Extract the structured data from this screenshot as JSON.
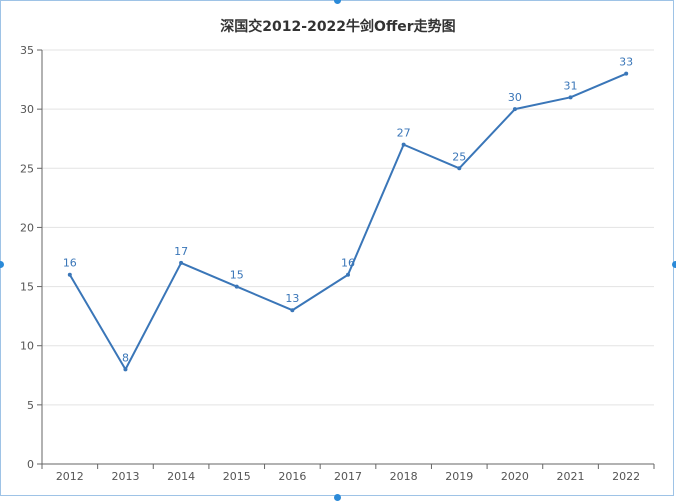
{
  "chart_data": {
    "type": "line",
    "title": "深国交2012-2022牛剑Offer走势图",
    "xlabel": "",
    "ylabel": "",
    "categories": [
      "2012",
      "2013",
      "2014",
      "2015",
      "2016",
      "2017",
      "2018",
      "2019",
      "2020",
      "2021",
      "2022"
    ],
    "series": [
      {
        "values": [
          16,
          8,
          17,
          15,
          13,
          16,
          27,
          25,
          30,
          31,
          33
        ],
        "color": "#3a76b8"
      }
    ],
    "ylim": [
      0,
      35
    ],
    "yticks": [
      0,
      5,
      10,
      15,
      20,
      25,
      30,
      35
    ],
    "grid": true,
    "legend": "none"
  }
}
